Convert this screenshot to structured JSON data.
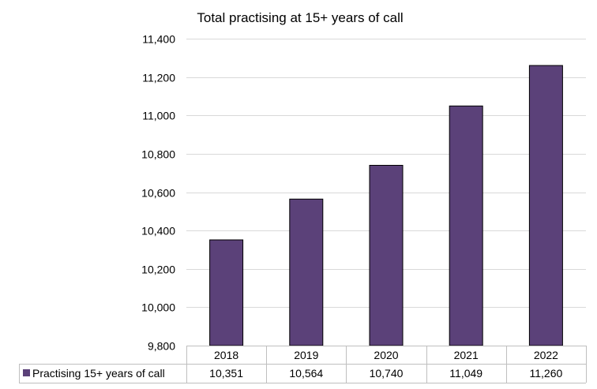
{
  "chart_data": {
    "type": "bar",
    "title": "Total practising at 15+ years of call",
    "categories": [
      "2018",
      "2019",
      "2020",
      "2021",
      "2022"
    ],
    "series": [
      {
        "name": "Practising 15+ years of call",
        "values": [
          10351,
          10564,
          10740,
          11049,
          11260
        ],
        "value_labels": [
          "10,351",
          "10,564",
          "10,740",
          "11,049",
          "11,260"
        ],
        "color": "#5b4179"
      }
    ],
    "ylim": [
      9800,
      11400
    ],
    "yticks": [
      9800,
      10000,
      10200,
      10400,
      10600,
      10800,
      11000,
      11200,
      11400
    ],
    "ytick_labels": [
      "9,800",
      "10,000",
      "10,200",
      "10,400",
      "10,600",
      "10,800",
      "11,000",
      "11,200",
      "11,400"
    ],
    "grid": true,
    "legend": "data-table",
    "xlabel": "",
    "ylabel": ""
  }
}
